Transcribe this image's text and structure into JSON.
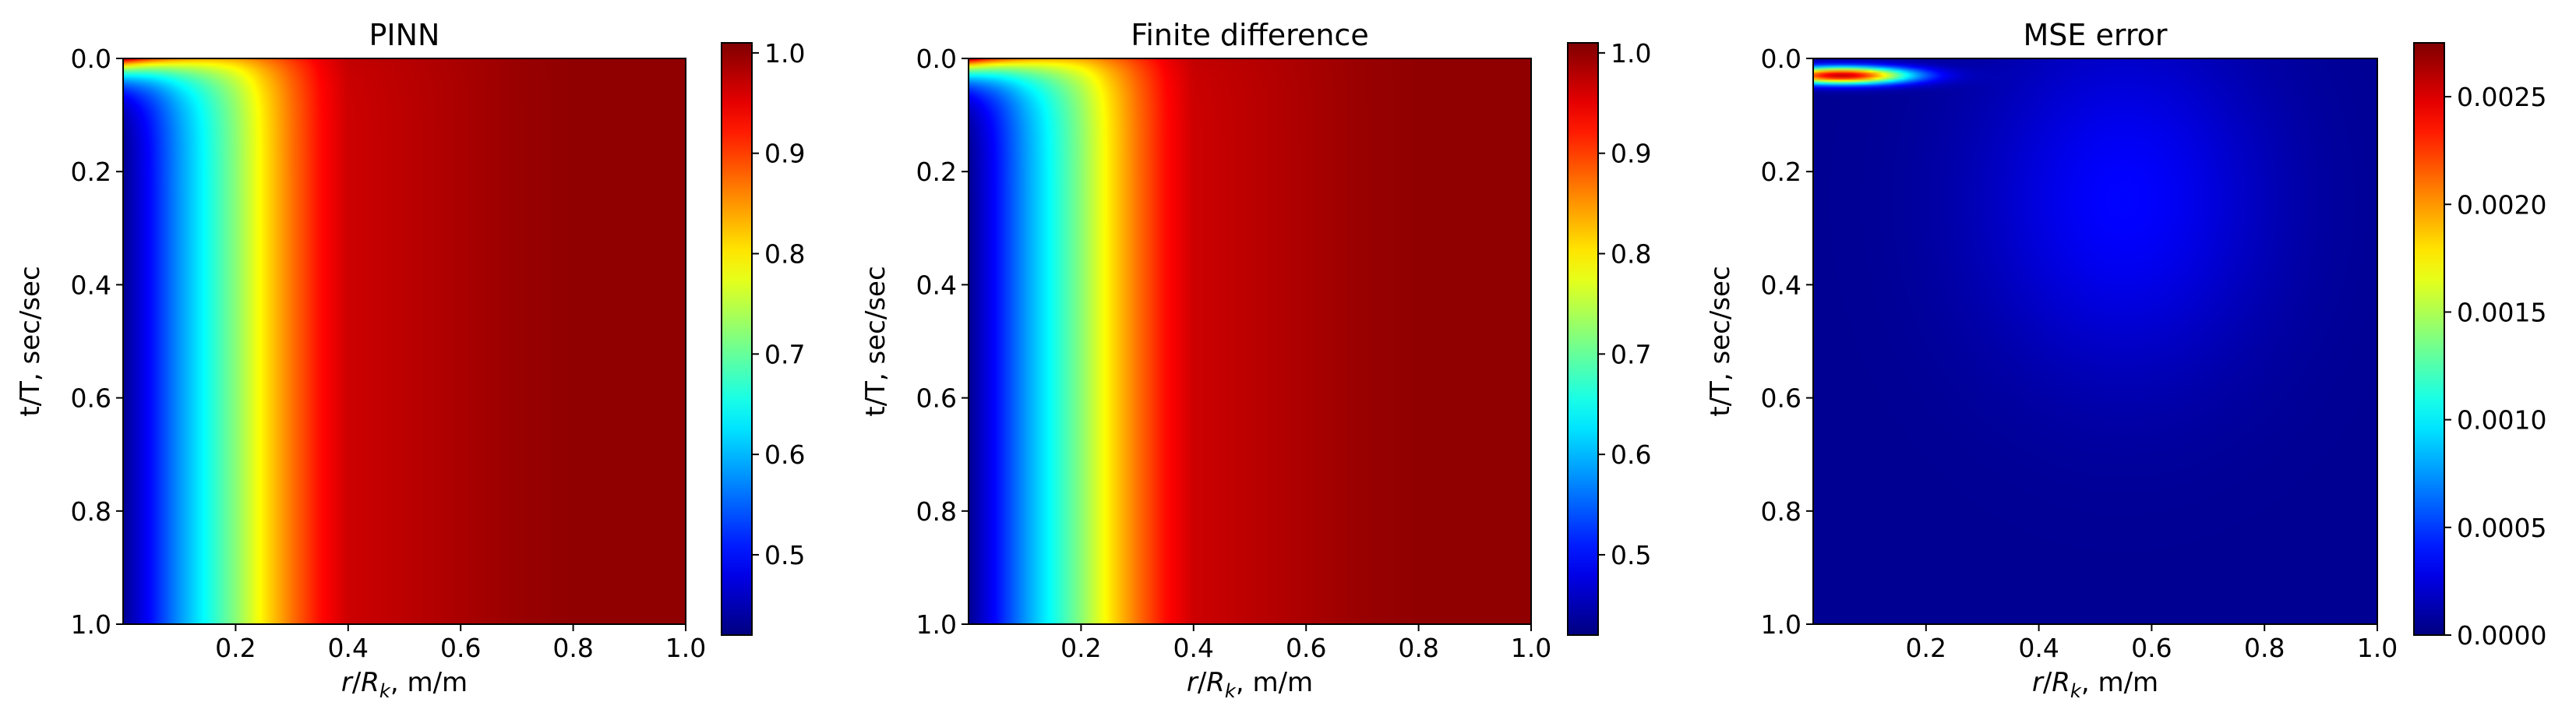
{
  "chart_data": [
    {
      "type": "heatmap",
      "title": "PINN",
      "xlabel": "r/R_k, m/m",
      "xlabel_parts": {
        "r": "r",
        "slash": "/",
        "R": "R",
        "k": "k",
        "rest": ", m/m"
      },
      "ylabel": "t/T, sec/sec",
      "xlim": [
        0,
        1.0
      ],
      "ylim": [
        1.0,
        0
      ],
      "x_ticks": [
        "0.2",
        "0.4",
        "0.6",
        "0.8",
        "1.0"
      ],
      "x_tick_values": [
        0.2,
        0.4,
        0.6,
        0.8,
        1.0
      ],
      "y_ticks": [
        "0.0",
        "0.2",
        "0.4",
        "0.6",
        "0.8",
        "1.0"
      ],
      "y_tick_values": [
        0.0,
        0.2,
        0.4,
        0.6,
        0.8,
        1.0
      ],
      "colormap": "jet",
      "colorbar_range": [
        0.42,
        1.01
      ],
      "colorbar_ticks": [
        "0.5",
        "0.6",
        "0.7",
        "0.8",
        "0.9",
        "1.0"
      ],
      "colorbar_tick_values": [
        0.5,
        0.6,
        0.7,
        0.8,
        0.9,
        1.0
      ],
      "field": {
        "description_values": {
          "r": [
            0.0,
            0.05,
            0.1,
            0.15,
            0.2,
            0.25,
            0.3,
            0.35,
            0.4,
            0.5,
            0.6,
            0.7,
            0.8,
            0.9,
            1.0
          ],
          "value_at_late_time": [
            0.43,
            0.5,
            0.58,
            0.65,
            0.72,
            0.8,
            0.87,
            0.93,
            0.965,
            0.975,
            0.985,
            0.995,
            1.0,
            1.0,
            1.0
          ],
          "value_at_initial_time": 1.0
        }
      }
    },
    {
      "type": "heatmap",
      "title": "Finite difference",
      "xlabel": "r/R_k, m/m",
      "xlabel_parts": {
        "r": "r",
        "slash": "/",
        "R": "R",
        "k": "k",
        "rest": ", m/m"
      },
      "ylabel": "t/T, sec/sec",
      "xlim": [
        0,
        1.0
      ],
      "ylim": [
        1.0,
        0
      ],
      "x_ticks": [
        "0.2",
        "0.4",
        "0.6",
        "0.8",
        "1.0"
      ],
      "x_tick_values": [
        0.2,
        0.4,
        0.6,
        0.8,
        1.0
      ],
      "y_ticks": [
        "0.0",
        "0.2",
        "0.4",
        "0.6",
        "0.8",
        "1.0"
      ],
      "y_tick_values": [
        0.0,
        0.2,
        0.4,
        0.6,
        0.8,
        1.0
      ],
      "colormap": "jet",
      "colorbar_range": [
        0.42,
        1.01
      ],
      "colorbar_ticks": [
        "0.5",
        "0.6",
        "0.7",
        "0.8",
        "0.9",
        "1.0"
      ],
      "colorbar_tick_values": [
        0.5,
        0.6,
        0.7,
        0.8,
        0.9,
        1.0
      ],
      "field": {
        "description_values": {
          "r": [
            0.0,
            0.05,
            0.1,
            0.15,
            0.2,
            0.25,
            0.3,
            0.35,
            0.4,
            0.5,
            0.6,
            0.7,
            0.8,
            0.9,
            1.0
          ],
          "value_at_late_time": [
            0.43,
            0.5,
            0.58,
            0.65,
            0.72,
            0.8,
            0.87,
            0.93,
            0.965,
            0.975,
            0.985,
            0.995,
            1.0,
            1.0,
            1.0
          ],
          "value_at_initial_time": 1.0
        }
      }
    },
    {
      "type": "heatmap",
      "title": "MSE error",
      "xlabel": "r/R_k, m/m",
      "xlabel_parts": {
        "r": "r",
        "slash": "/",
        "R": "R",
        "k": "k",
        "rest": ", m/m"
      },
      "ylabel": "t/T, sec/sec",
      "xlim": [
        0,
        1.0
      ],
      "ylim": [
        1.0,
        0
      ],
      "x_ticks": [
        "0.2",
        "0.4",
        "0.6",
        "0.8",
        "1.0"
      ],
      "x_tick_values": [
        0.2,
        0.4,
        0.6,
        0.8,
        1.0
      ],
      "y_ticks": [
        "0.0",
        "0.2",
        "0.4",
        "0.6",
        "0.8",
        "1.0"
      ],
      "y_tick_values": [
        0.0,
        0.2,
        0.4,
        0.6,
        0.8,
        1.0
      ],
      "colormap": "jet",
      "colorbar_range": [
        0.0,
        0.00275
      ],
      "colorbar_ticks": [
        "0.0000",
        "0.0005",
        "0.0010",
        "0.0015",
        "0.0020",
        "0.0025"
      ],
      "colorbar_tick_values": [
        0.0,
        0.0005,
        0.001,
        0.0015,
        0.002,
        0.0025
      ],
      "field": {
        "peak_value": 0.0025,
        "peak_location": {
          "r": 0.05,
          "t": 0.03
        },
        "background_value": 5e-05,
        "secondary_bump": {
          "r": 0.55,
          "t": 0.25,
          "value": 0.0003
        }
      }
    }
  ]
}
